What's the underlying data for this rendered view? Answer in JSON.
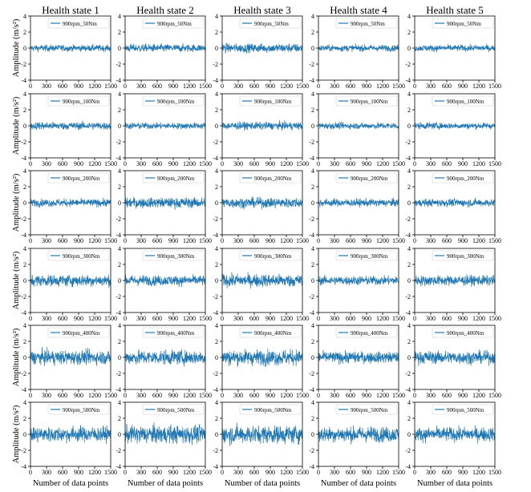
{
  "chart_data": {
    "type": "line",
    "layout": "grid of line charts, 6 rows x 5 columns",
    "column_titles": [
      "Health state 1",
      "Health state 2",
      "Health state 3",
      "Health state 4",
      "Health state 5"
    ],
    "row_series": [
      "900rpm_50Nm",
      "900rpm_100Nm",
      "900rpm_200Nm",
      "900rpm_300Nm",
      "900rpm_400Nm",
      "900rpm_500Nm"
    ],
    "xlabel": "Number of data points",
    "ylabel": "Amplitude (m/s²)",
    "xlim": [
      0,
      1500
    ],
    "ylim": [
      -4,
      4
    ],
    "xticks": [
      "0",
      "300",
      "600",
      "900",
      "1200",
      "1500"
    ],
    "yticks": [
      "-4",
      "-2",
      "0",
      "2",
      "4"
    ],
    "legend_position": "top-right",
    "grid": false,
    "line_color": "#1f77b4",
    "n_points_per_panel": 1500,
    "signal_note": "dense vibration signals centered at 0",
    "approx_amplitude_by_row_and_state": [
      [
        0.5,
        0.6,
        0.7,
        0.5,
        0.5
      ],
      [
        0.6,
        0.5,
        0.6,
        0.5,
        0.5
      ],
      [
        0.6,
        0.8,
        0.8,
        0.6,
        0.6
      ],
      [
        0.9,
        0.8,
        1.0,
        0.7,
        0.8
      ],
      [
        1.1,
        1.1,
        1.2,
        0.9,
        1.0
      ],
      [
        1.2,
        1.4,
        1.4,
        1.2,
        1.1
      ]
    ]
  }
}
